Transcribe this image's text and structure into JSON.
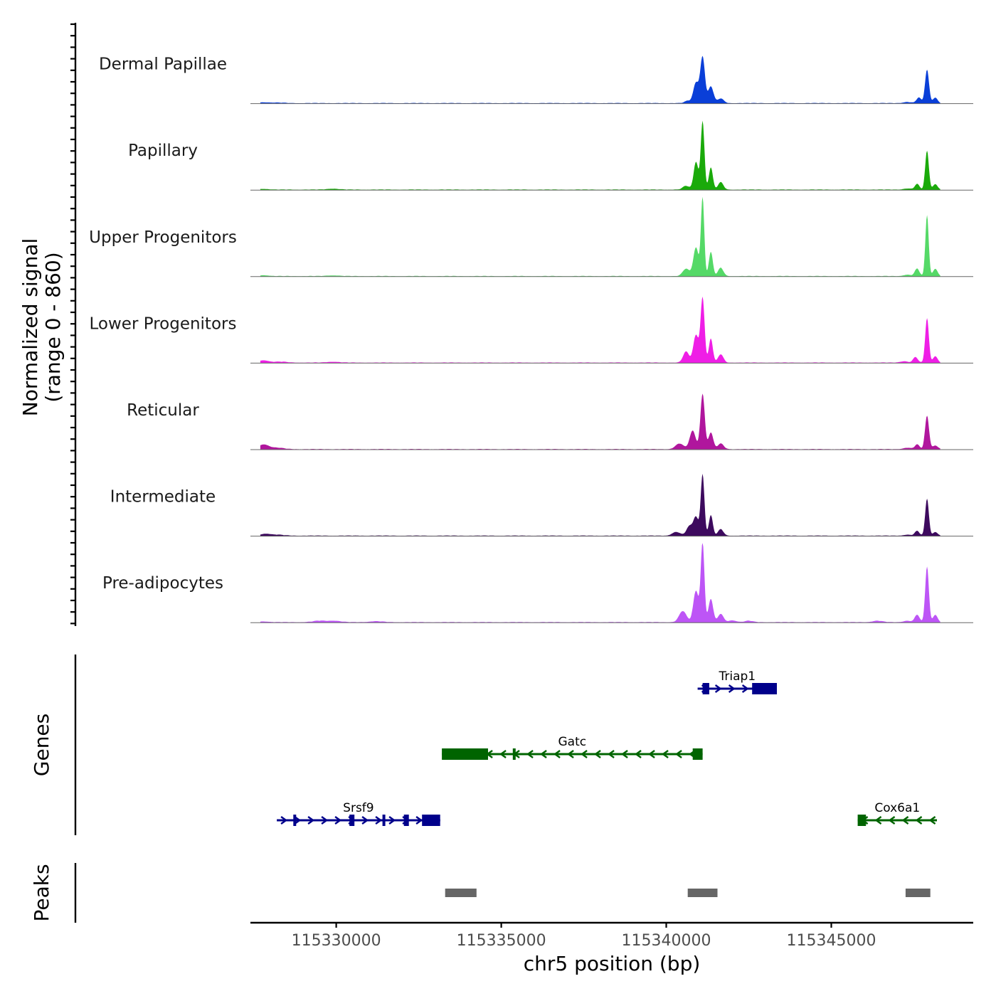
{
  "chart_data": {
    "type": "area",
    "title": "",
    "ylabel": "Normalized signal",
    "ylabel_range": "(range 0 - 860)",
    "yrange": [
      0,
      860
    ],
    "xlabel": "chr5 position (bp)",
    "xlim": [
      115327400,
      115349300
    ],
    "xticks": [
      115330000,
      115335000,
      115340000,
      115345000
    ],
    "xtick_labels": [
      "115330000",
      "115335000",
      "115340000",
      "115345000"
    ],
    "tracks": [
      {
        "name": "Dermal Papillae",
        "color": "#0a3fd8",
        "peaks": [
          [
            115327800,
            8,
            150
          ],
          [
            115328200,
            5,
            200
          ],
          [
            115340650,
            25,
            90
          ],
          [
            115340900,
            220,
            80
          ],
          [
            115341100,
            500,
            70
          ],
          [
            115341350,
            180,
            80
          ],
          [
            115341650,
            50,
            90
          ],
          [
            115347300,
            12,
            120
          ],
          [
            115347650,
            60,
            70
          ],
          [
            115347900,
            360,
            60
          ],
          [
            115348150,
            60,
            70
          ]
        ]
      },
      {
        "name": "Papillary",
        "color": "#1aaa0a",
        "peaks": [
          [
            115327800,
            8,
            150
          ],
          [
            115329900,
            10,
            180
          ],
          [
            115340600,
            40,
            100
          ],
          [
            115340900,
            300,
            70
          ],
          [
            115341100,
            740,
            55
          ],
          [
            115341350,
            240,
            60
          ],
          [
            115341650,
            80,
            80
          ],
          [
            115347300,
            12,
            120
          ],
          [
            115347600,
            60,
            70
          ],
          [
            115347900,
            420,
            55
          ],
          [
            115348150,
            60,
            70
          ]
        ]
      },
      {
        "name": "Upper Progenitors",
        "color": "#55d967",
        "peaks": [
          [
            115327800,
            10,
            150
          ],
          [
            115329900,
            8,
            180
          ],
          [
            115340600,
            80,
            100
          ],
          [
            115340900,
            310,
            80
          ],
          [
            115341100,
            850,
            50
          ],
          [
            115341350,
            260,
            60
          ],
          [
            115341650,
            90,
            80
          ],
          [
            115347300,
            15,
            120
          ],
          [
            115347600,
            80,
            70
          ],
          [
            115347900,
            660,
            50
          ],
          [
            115348150,
            80,
            70
          ]
        ]
      },
      {
        "name": "Lower Progenitors",
        "color": "#ef1ee6",
        "peaks": [
          [
            115327800,
            25,
            150
          ],
          [
            115328300,
            10,
            200
          ],
          [
            115329900,
            10,
            180
          ],
          [
            115340600,
            120,
            90
          ],
          [
            115340900,
            300,
            80
          ],
          [
            115341100,
            700,
            60
          ],
          [
            115341350,
            260,
            60
          ],
          [
            115341650,
            90,
            80
          ],
          [
            115347200,
            15,
            120
          ],
          [
            115347550,
            60,
            70
          ],
          [
            115347900,
            480,
            55
          ],
          [
            115348150,
            70,
            70
          ]
        ]
      },
      {
        "name": "Reticular",
        "color": "#b0169d",
        "peaks": [
          [
            115327800,
            50,
            150
          ],
          [
            115328200,
            15,
            200
          ],
          [
            115340400,
            60,
            120
          ],
          [
            115340800,
            200,
            90
          ],
          [
            115341100,
            600,
            65
          ],
          [
            115341350,
            180,
            70
          ],
          [
            115341650,
            60,
            90
          ],
          [
            115347300,
            15,
            120
          ],
          [
            115347600,
            50,
            70
          ],
          [
            115347900,
            360,
            60
          ],
          [
            115348150,
            40,
            80
          ]
        ]
      },
      {
        "name": "Intermediate",
        "color": "#3d0a5e",
        "peaks": [
          [
            115327850,
            20,
            140
          ],
          [
            115328200,
            10,
            200
          ],
          [
            115340300,
            40,
            120
          ],
          [
            115340700,
            100,
            90
          ],
          [
            115340900,
            200,
            80
          ],
          [
            115341100,
            660,
            55
          ],
          [
            115341350,
            220,
            60
          ],
          [
            115341650,
            70,
            80
          ],
          [
            115347300,
            10,
            120
          ],
          [
            115347600,
            50,
            70
          ],
          [
            115347900,
            400,
            55
          ],
          [
            115348150,
            40,
            70
          ]
        ]
      },
      {
        "name": "Pre-adipocytes",
        "color": "#bd55f6",
        "peaks": [
          [
            115327800,
            8,
            150
          ],
          [
            115329500,
            15,
            200
          ],
          [
            115329950,
            15,
            180
          ],
          [
            115331200,
            10,
            200
          ],
          [
            115340500,
            120,
            110
          ],
          [
            115340900,
            340,
            80
          ],
          [
            115341100,
            860,
            55
          ],
          [
            115341350,
            250,
            70
          ],
          [
            115341650,
            90,
            80
          ],
          [
            115342000,
            20,
            120
          ],
          [
            115342500,
            15,
            120
          ],
          [
            115346400,
            15,
            150
          ],
          [
            115347300,
            15,
            120
          ],
          [
            115347600,
            80,
            70
          ],
          [
            115347900,
            600,
            55
          ],
          [
            115348150,
            80,
            70
          ]
        ]
      }
    ],
    "genes_title": "Genes",
    "genes": [
      {
        "name": "Triap1",
        "strand": "+",
        "color": "#00008b",
        "row": 0,
        "start": 115340950,
        "end": 115343350,
        "exons": [
          [
            115341100,
            115341300
          ],
          [
            115342600,
            115343350
          ]
        ]
      },
      {
        "name": "Gatc",
        "strand": "-",
        "color": "#006400",
        "row": 1,
        "start": 115333200,
        "end": 115341100,
        "exons": [
          [
            115333200,
            115334600
          ],
          [
            115335350,
            115335400
          ],
          [
            115340800,
            115341100
          ]
        ]
      },
      {
        "name": "Srsf9",
        "strand": "+",
        "color": "#00008b",
        "row": 2,
        "start": 115328200,
        "end": 115333150,
        "exons": [
          [
            115328700,
            115328750
          ],
          [
            115330400,
            115330550
          ],
          [
            115331400,
            115331450
          ],
          [
            115332050,
            115332200
          ],
          [
            115332600,
            115333150
          ]
        ]
      },
      {
        "name": "Cox6a1",
        "strand": "-",
        "color": "#006400",
        "row": 2,
        "start": 115345800,
        "end": 115348200,
        "exons": [
          [
            115345800,
            115346050
          ]
        ]
      }
    ],
    "peaks_title": "Peaks",
    "peak_regions": [
      [
        115333300,
        115334250
      ],
      [
        115340650,
        115341550
      ],
      [
        115347250,
        115348000
      ]
    ],
    "peak_color": "#666666"
  }
}
